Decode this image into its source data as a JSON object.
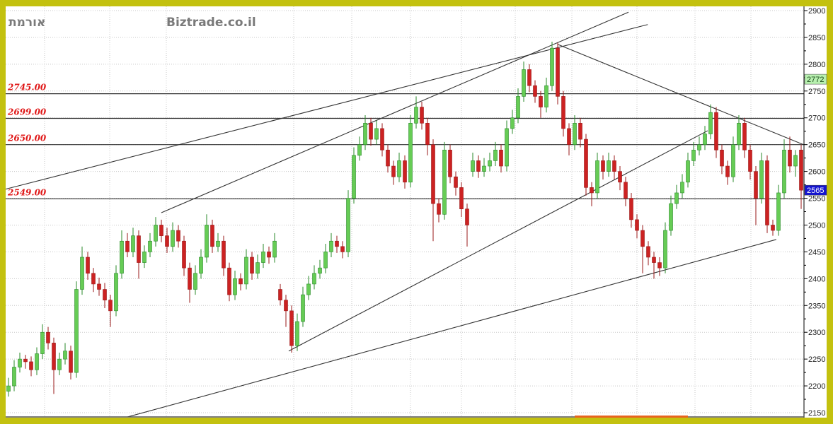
{
  "header": {
    "symbol": "אורמת",
    "brand": "Biztrade.co.il"
  },
  "chart_data": {
    "type": "candlestick",
    "title": "",
    "ylim": [
      2150,
      2900
    ],
    "yticks": [
      2150,
      2200,
      2250,
      2300,
      2350,
      2400,
      2450,
      2500,
      2550,
      2600,
      2650,
      2700,
      2750,
      2800,
      2850,
      2900
    ],
    "grid": true,
    "colors": {
      "up": "#66cc55",
      "down": "#cc2222",
      "trendline": "#333333"
    },
    "candles_ohlc": [
      [
        2190,
        2215,
        2180,
        2200
      ],
      [
        2200,
        2248,
        2190,
        2235
      ],
      [
        2235,
        2262,
        2225,
        2250
      ],
      [
        2250,
        2258,
        2232,
        2245
      ],
      [
        2245,
        2255,
        2218,
        2230
      ],
      [
        2230,
        2272,
        2220,
        2260
      ],
      [
        2260,
        2315,
        2250,
        2300
      ],
      [
        2300,
        2310,
        2268,
        2280
      ],
      [
        2280,
        2290,
        2185,
        2230
      ],
      [
        2230,
        2262,
        2220,
        2250
      ],
      [
        2250,
        2280,
        2240,
        2265
      ],
      [
        2265,
        2275,
        2212,
        2225
      ],
      [
        2225,
        2395,
        2215,
        2380
      ],
      [
        2380,
        2460,
        2370,
        2440
      ],
      [
        2440,
        2450,
        2398,
        2410
      ],
      [
        2410,
        2420,
        2375,
        2390
      ],
      [
        2390,
        2402,
        2368,
        2380
      ],
      [
        2380,
        2392,
        2345,
        2360
      ],
      [
        2360,
        2370,
        2310,
        2340
      ],
      [
        2340,
        2425,
        2330,
        2410
      ],
      [
        2410,
        2490,
        2400,
        2470
      ],
      [
        2470,
        2485,
        2440,
        2450
      ],
      [
        2450,
        2495,
        2440,
        2480
      ],
      [
        2480,
        2490,
        2400,
        2430
      ],
      [
        2430,
        2462,
        2420,
        2450
      ],
      [
        2450,
        2485,
        2440,
        2470
      ],
      [
        2470,
        2515,
        2460,
        2500
      ],
      [
        2500,
        2510,
        2468,
        2480
      ],
      [
        2480,
        2495,
        2448,
        2460
      ],
      [
        2460,
        2505,
        2450,
        2490
      ],
      [
        2490,
        2500,
        2458,
        2470
      ],
      [
        2470,
        2480,
        2405,
        2420
      ],
      [
        2420,
        2430,
        2355,
        2380
      ],
      [
        2380,
        2425,
        2370,
        2410
      ],
      [
        2410,
        2455,
        2400,
        2440
      ],
      [
        2440,
        2520,
        2430,
        2500
      ],
      [
        2500,
        2510,
        2448,
        2460
      ],
      [
        2460,
        2485,
        2450,
        2470
      ],
      [
        2470,
        2480,
        2405,
        2420
      ],
      [
        2420,
        2430,
        2358,
        2370
      ],
      [
        2370,
        2415,
        2360,
        2400
      ],
      [
        2400,
        2410,
        2378,
        2390
      ],
      [
        2390,
        2455,
        2380,
        2440
      ],
      [
        2440,
        2450,
        2398,
        2410
      ],
      [
        2410,
        2445,
        2400,
        2430
      ],
      [
        2430,
        2465,
        2420,
        2450
      ],
      [
        2450,
        2460,
        2428,
        2440
      ],
      [
        2440,
        2485,
        2430,
        2470
      ],
      [
        2380,
        2390,
        2350,
        2360
      ],
      [
        2360,
        2370,
        2310,
        2340
      ],
      [
        2340,
        2350,
        2262,
        2275
      ],
      [
        2275,
        2335,
        2265,
        2320
      ],
      [
        2320,
        2385,
        2310,
        2370
      ],
      [
        2370,
        2405,
        2360,
        2390
      ],
      [
        2390,
        2425,
        2380,
        2410
      ],
      [
        2410,
        2435,
        2400,
        2420
      ],
      [
        2420,
        2465,
        2410,
        2450
      ],
      [
        2450,
        2485,
        2440,
        2470
      ],
      [
        2470,
        2480,
        2448,
        2460
      ],
      [
        2460,
        2470,
        2438,
        2450
      ],
      [
        2450,
        2565,
        2440,
        2550
      ],
      [
        2550,
        2645,
        2540,
        2630
      ],
      [
        2630,
        2665,
        2620,
        2650
      ],
      [
        2650,
        2705,
        2640,
        2690
      ],
      [
        2690,
        2700,
        2648,
        2660
      ],
      [
        2660,
        2695,
        2650,
        2680
      ],
      [
        2680,
        2690,
        2628,
        2640
      ],
      [
        2640,
        2650,
        2598,
        2610
      ],
      [
        2610,
        2620,
        2575,
        2590
      ],
      [
        2590,
        2635,
        2580,
        2620
      ],
      [
        2620,
        2630,
        2568,
        2580
      ],
      [
        2580,
        2705,
        2570,
        2690
      ],
      [
        2690,
        2740,
        2680,
        2720
      ],
      [
        2720,
        2730,
        2678,
        2690
      ],
      [
        2690,
        2700,
        2630,
        2650
      ],
      [
        2650,
        2660,
        2470,
        2540
      ],
      [
        2540,
        2550,
        2505,
        2520
      ],
      [
        2520,
        2655,
        2510,
        2640
      ],
      [
        2640,
        2650,
        2578,
        2590
      ],
      [
        2590,
        2600,
        2555,
        2570
      ],
      [
        2570,
        2580,
        2515,
        2530
      ],
      [
        2530,
        2540,
        2460,
        2500
      ],
      [
        2600,
        2635,
        2590,
        2620
      ],
      [
        2620,
        2630,
        2588,
        2600
      ],
      [
        2600,
        2625,
        2590,
        2610
      ],
      [
        2610,
        2635,
        2600,
        2620
      ],
      [
        2620,
        2655,
        2610,
        2640
      ],
      [
        2640,
        2650,
        2598,
        2610
      ],
      [
        2610,
        2695,
        2600,
        2680
      ],
      [
        2680,
        2715,
        2670,
        2700
      ],
      [
        2700,
        2755,
        2690,
        2740
      ],
      [
        2740,
        2805,
        2730,
        2790
      ],
      [
        2790,
        2800,
        2748,
        2760
      ],
      [
        2760,
        2770,
        2728,
        2740
      ],
      [
        2740,
        2750,
        2700,
        2720
      ],
      [
        2720,
        2775,
        2710,
        2760
      ],
      [
        2760,
        2842,
        2750,
        2830
      ],
      [
        2830,
        2840,
        2725,
        2740
      ],
      [
        2740,
        2750,
        2665,
        2680
      ],
      [
        2680,
        2690,
        2630,
        2650
      ],
      [
        2650,
        2705,
        2640,
        2690
      ],
      [
        2690,
        2700,
        2645,
        2660
      ],
      [
        2660,
        2670,
        2555,
        2570
      ],
      [
        2570,
        2580,
        2535,
        2560
      ],
      [
        2560,
        2635,
        2550,
        2620
      ],
      [
        2620,
        2630,
        2585,
        2600
      ],
      [
        2600,
        2635,
        2590,
        2620
      ],
      [
        2620,
        2630,
        2585,
        2600
      ],
      [
        2600,
        2610,
        2565,
        2580
      ],
      [
        2580,
        2590,
        2535,
        2550
      ],
      [
        2550,
        2560,
        2495,
        2510
      ],
      [
        2510,
        2520,
        2475,
        2490
      ],
      [
        2490,
        2500,
        2410,
        2460
      ],
      [
        2460,
        2470,
        2425,
        2440
      ],
      [
        2440,
        2450,
        2400,
        2430
      ],
      [
        2430,
        2440,
        2405,
        2420
      ],
      [
        2420,
        2505,
        2410,
        2490
      ],
      [
        2490,
        2555,
        2480,
        2540
      ],
      [
        2540,
        2575,
        2530,
        2560
      ],
      [
        2560,
        2595,
        2550,
        2580
      ],
      [
        2580,
        2635,
        2570,
        2620
      ],
      [
        2620,
        2655,
        2610,
        2640
      ],
      [
        2640,
        2665,
        2630,
        2650
      ],
      [
        2650,
        2685,
        2640,
        2670
      ],
      [
        2670,
        2725,
        2660,
        2710
      ],
      [
        2710,
        2720,
        2625,
        2640
      ],
      [
        2640,
        2650,
        2595,
        2610
      ],
      [
        2610,
        2620,
        2575,
        2590
      ],
      [
        2590,
        2665,
        2580,
        2650
      ],
      [
        2650,
        2705,
        2640,
        2690
      ],
      [
        2690,
        2700,
        2625,
        2640
      ],
      [
        2640,
        2650,
        2585,
        2600
      ],
      [
        2600,
        2610,
        2500,
        2550
      ],
      [
        2550,
        2635,
        2540,
        2620
      ],
      [
        2620,
        2630,
        2485,
        2500
      ],
      [
        2500,
        2510,
        2480,
        2490
      ],
      [
        2490,
        2575,
        2480,
        2560
      ],
      [
        2560,
        2660,
        2550,
        2640
      ],
      [
        2640,
        2665,
        2598,
        2610
      ],
      [
        2610,
        2640,
        2590,
        2630
      ],
      [
        2640,
        2650,
        2530,
        2565
      ]
    ],
    "horizontal_lines": [
      {
        "label": "2745.00",
        "value": 2745
      },
      {
        "label": "2699.00",
        "value": 2699
      },
      {
        "label": "2650.00",
        "value": 2650
      },
      {
        "label": "2549.00",
        "value": 2549
      }
    ],
    "trendlines": [
      {
        "from": [
          -0.5,
          2567
        ],
        "to": [
          112.9,
          2874
        ]
      },
      {
        "from": [
          27,
          2523
        ],
        "to": [
          109.5,
          2897
        ]
      },
      {
        "from": [
          49.5,
          2265
        ],
        "to": [
          123.5,
          2676
        ]
      },
      {
        "from": [
          21,
          2142
        ],
        "to": [
          135.6,
          2473
        ]
      },
      {
        "from": [
          97,
          2837
        ],
        "to": [
          140.4,
          2650
        ]
      }
    ],
    "price_tags": [
      {
        "label": "2772",
        "value": 2772,
        "bg": "#b8f0b0",
        "fg": "#1a4a1a"
      },
      {
        "label": "2565",
        "value": 2565,
        "bg": "#1414d0",
        "fg": "#ffffff"
      }
    ]
  }
}
